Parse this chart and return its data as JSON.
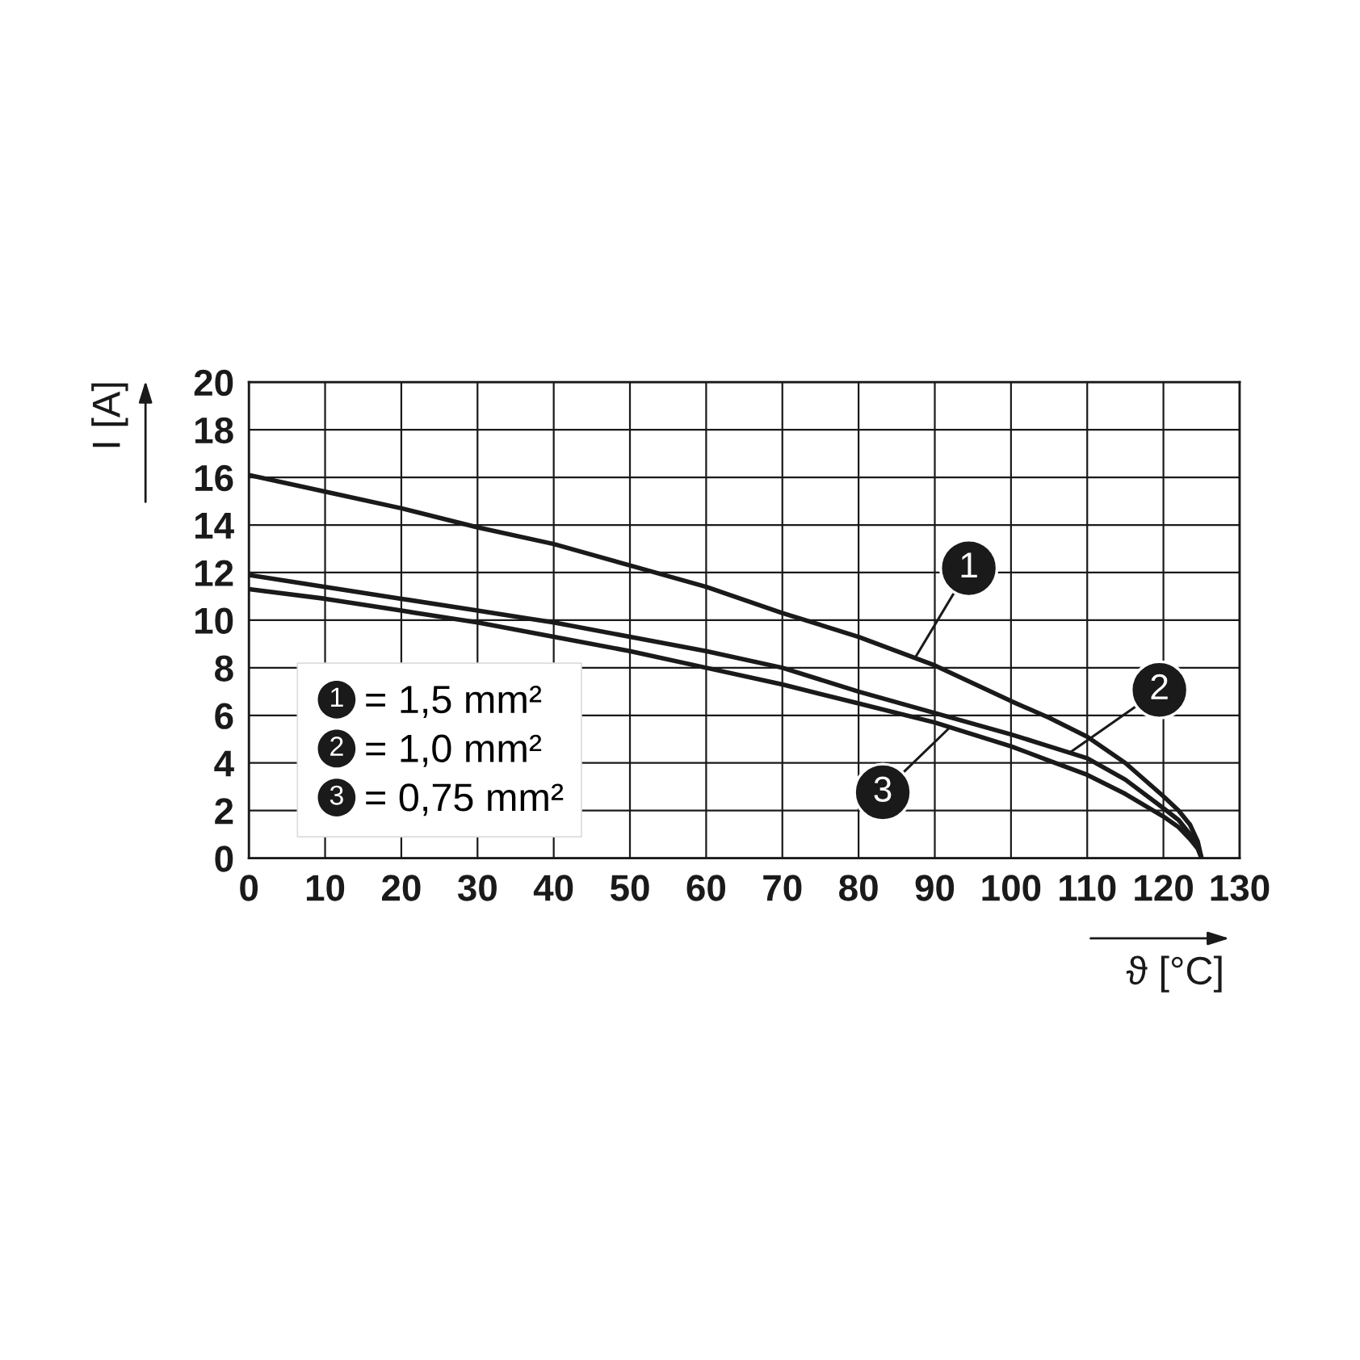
{
  "chart_data": {
    "type": "line",
    "xlabel": "ϑ [°C]",
    "ylabel": "I [A]",
    "xlim": [
      0,
      130
    ],
    "xticks": [
      0,
      10,
      20,
      30,
      40,
      50,
      60,
      70,
      80,
      90,
      100,
      110,
      120,
      130
    ],
    "ylim": [
      0,
      20
    ],
    "yticks": [
      0,
      2,
      4,
      6,
      8,
      10,
      12,
      14,
      16,
      18,
      20
    ],
    "grid": true,
    "legend": "bottom left",
    "marker": "none",
    "line_style": "solid",
    "series": [
      {
        "name": "1",
        "color": "#1a1a1a",
        "x": [
          0,
          10,
          20,
          30,
          40,
          50,
          60,
          70,
          80,
          90,
          100,
          105,
          110,
          115,
          120,
          122,
          123.5,
          124.5,
          125
        ],
        "values": [
          16.1,
          15.4,
          14.7,
          13.9,
          13.2,
          12.3,
          11.4,
          10.3,
          9.3,
          8.1,
          6.6,
          5.9,
          5.1,
          4.0,
          2.6,
          2.0,
          1.4,
          0.7,
          0
        ]
      },
      {
        "name": "2",
        "color": "#1a1a1a",
        "x": [
          0,
          10,
          20,
          30,
          40,
          50,
          60,
          70,
          80,
          90,
          100,
          105,
          110,
          115,
          120,
          122,
          123.5,
          124.5,
          125
        ],
        "values": [
          11.9,
          11.4,
          10.9,
          10.4,
          9.9,
          9.3,
          8.7,
          8.0,
          7.0,
          6.1,
          5.2,
          4.7,
          4.2,
          3.3,
          2.1,
          1.6,
          1.0,
          0.5,
          0
        ]
      },
      {
        "name": "3",
        "color": "#1a1a1a",
        "x": [
          0,
          10,
          20,
          30,
          40,
          50,
          60,
          70,
          80,
          90,
          100,
          105,
          110,
          115,
          120,
          122,
          123.5,
          124.5,
          125
        ],
        "values": [
          11.3,
          10.9,
          10.4,
          9.9,
          9.3,
          8.7,
          8.0,
          7.3,
          6.5,
          5.7,
          4.7,
          4.1,
          3.5,
          2.7,
          1.75,
          1.3,
          0.8,
          0.4,
          0
        ]
      }
    ],
    "annotations": [
      "= 1,5 mm²",
      "= 1,0 mm²",
      "= 0,75 mm²"
    ]
  }
}
